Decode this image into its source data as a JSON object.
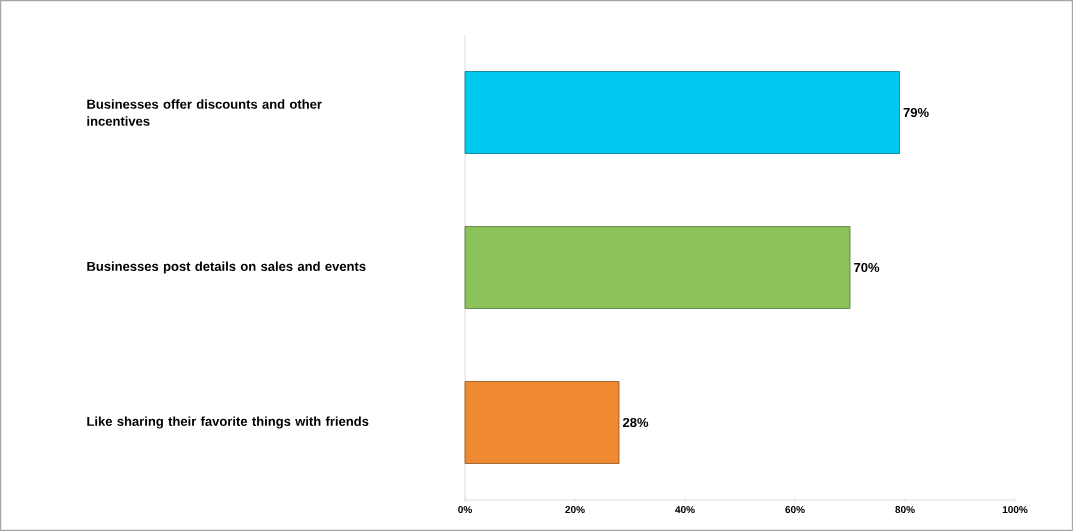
{
  "chart_data": {
    "type": "bar",
    "orientation": "horizontal",
    "categories": [
      "Businesses offer discounts and other incentives",
      "Businesses post details on sales and events",
      "Like sharing their favorite things with friends"
    ],
    "values": [
      79,
      70,
      28
    ],
    "colors": [
      "#00c8ee",
      "#8cc25a",
      "#f08a32"
    ],
    "value_labels": [
      "79%",
      "70%",
      "28%"
    ],
    "xlim": [
      0,
      100
    ],
    "xticks": [
      {
        "value": 0,
        "label": "0%"
      },
      {
        "value": 20,
        "label": "20%"
      },
      {
        "value": 40,
        "label": "40%"
      },
      {
        "value": 60,
        "label": "60%"
      },
      {
        "value": 80,
        "label": "80%"
      },
      {
        "value": 100,
        "label": "100%"
      }
    ],
    "grid": false
  }
}
